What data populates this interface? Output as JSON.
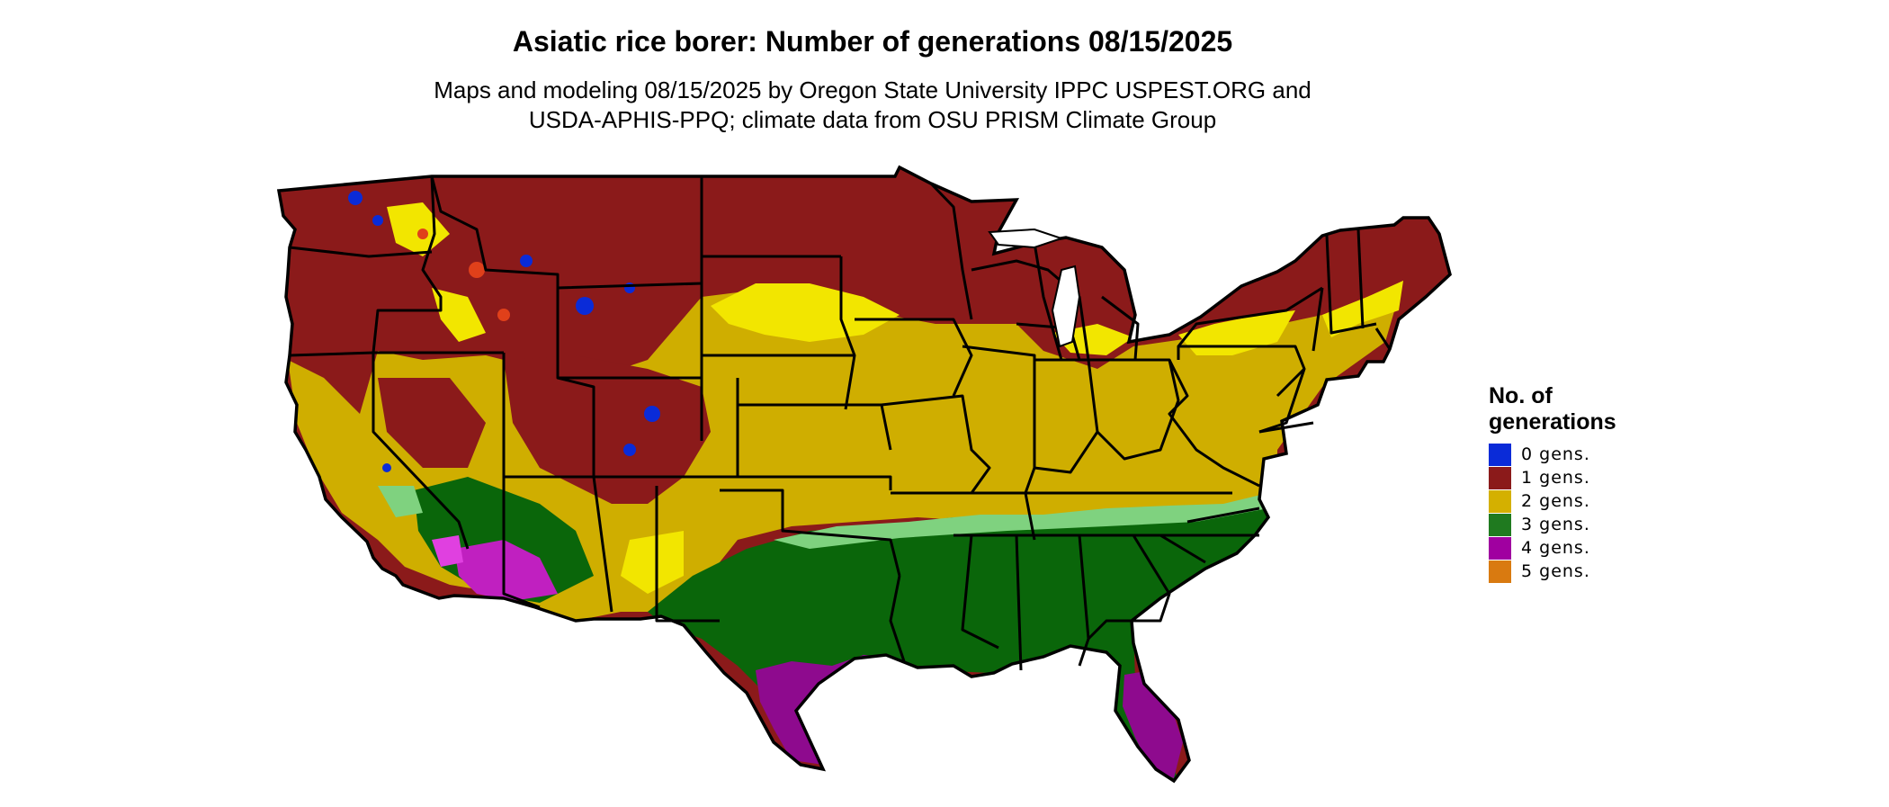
{
  "title": "Asiatic rice borer: Number of generations 08/15/2025",
  "subtitle_line1": "Maps and modeling 08/15/2025 by Oregon State University IPPC USPEST.ORG and",
  "subtitle_line2": "USDA-APHIS-PPQ; climate data from OSU PRISM Climate Group",
  "legend": {
    "title_line1": "No. of",
    "title_line2": "generations",
    "items": [
      {
        "label": "0 gens.",
        "color": "#0a2bd8"
      },
      {
        "label": "1 gens.",
        "color": "#8b1a1a"
      },
      {
        "label": "2 gens.",
        "color": "#d4b000"
      },
      {
        "label": "3 gens.",
        "color": "#1f7a1f"
      },
      {
        "label": "4 gens.",
        "color": "#a000a0"
      },
      {
        "label": "5 gens.",
        "color": "#d97a10"
      }
    ]
  },
  "colors": {
    "gen0": "#0a2bd8",
    "gen1": "#8b1a1a",
    "gen1_light": "#e0401a",
    "gen2": "#cfae00",
    "gen2_light": "#f2e600",
    "gen3": "#0a660a",
    "gen3_light": "#7fd27f",
    "gen4": "#8e0a8e",
    "gen4_light": "#e040e0",
    "gen5": "#d97a10",
    "border": "#000000"
  }
}
